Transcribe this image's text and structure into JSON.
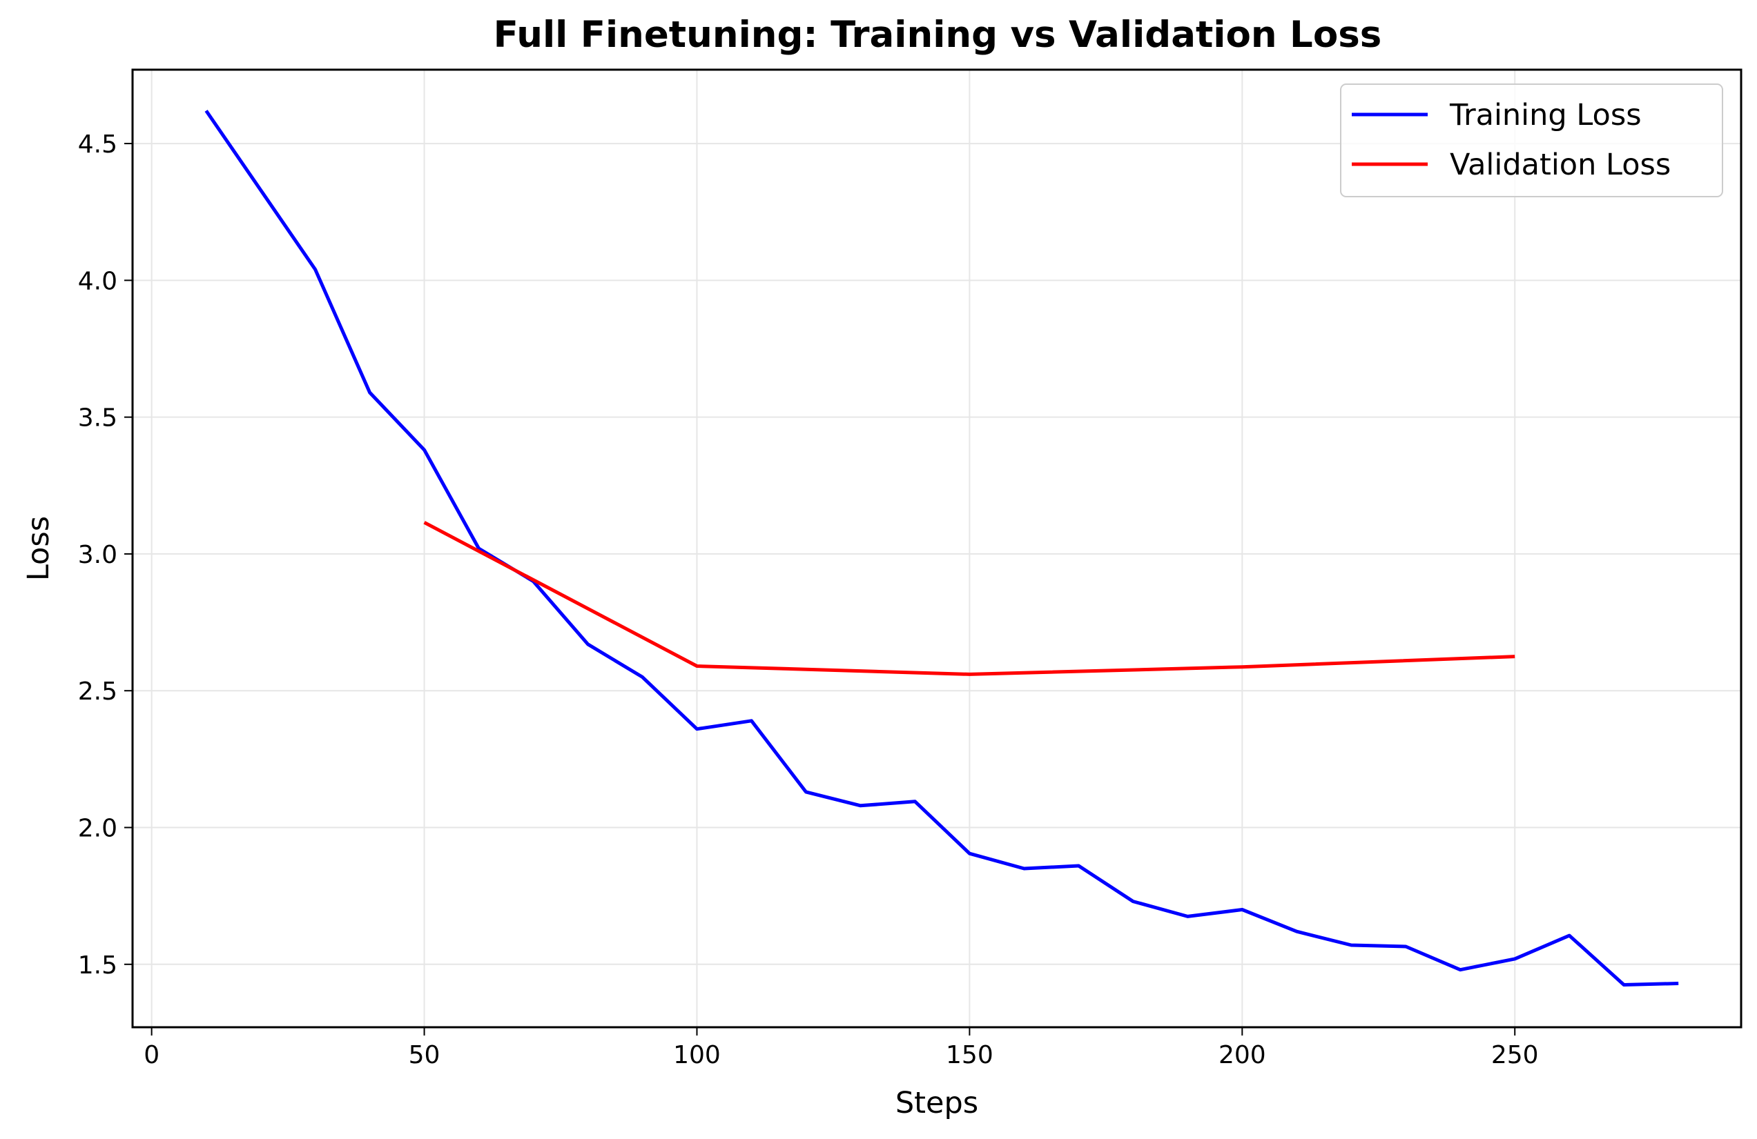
{
  "chart_data": {
    "type": "line",
    "title": "Full Finetuning: Training vs Validation Loss",
    "xlabel": "Steps",
    "ylabel": "Loss",
    "xlim": [
      -3.5,
      291.5
    ],
    "ylim": [
      1.27,
      4.77
    ],
    "xticks": [
      0,
      50,
      100,
      150,
      200,
      250
    ],
    "xtick_labels": [
      "0",
      "50",
      "100",
      "150",
      "200",
      "250"
    ],
    "yticks": [
      1.5,
      2.0,
      2.5,
      3.0,
      3.5,
      4.0,
      4.5
    ],
    "ytick_labels": [
      "1.5",
      "2.0",
      "2.5",
      "3.0",
      "3.5",
      "4.0",
      "4.5"
    ],
    "grid": true,
    "legend_position": "top-right",
    "series": [
      {
        "name": "Training Loss",
        "color": "#0000ff",
        "x": [
          10,
          20,
          30,
          40,
          50,
          60,
          70,
          80,
          90,
          100,
          110,
          120,
          130,
          140,
          150,
          160,
          170,
          180,
          190,
          200,
          210,
          220,
          230,
          240,
          250,
          260,
          270,
          280
        ],
        "y": [
          4.62,
          4.33,
          4.04,
          3.59,
          3.38,
          3.02,
          2.9,
          2.67,
          2.55,
          2.36,
          2.39,
          2.13,
          2.08,
          2.095,
          1.905,
          1.85,
          1.86,
          1.73,
          1.675,
          1.7,
          1.62,
          1.57,
          1.565,
          1.48,
          1.52,
          1.605,
          1.425,
          1.43
        ]
      },
      {
        "name": "Validation Loss",
        "color": "#ff0000",
        "x": [
          50,
          100,
          150,
          200,
          250
        ],
        "y": [
          3.115,
          2.59,
          2.56,
          2.587,
          2.625
        ]
      }
    ]
  }
}
